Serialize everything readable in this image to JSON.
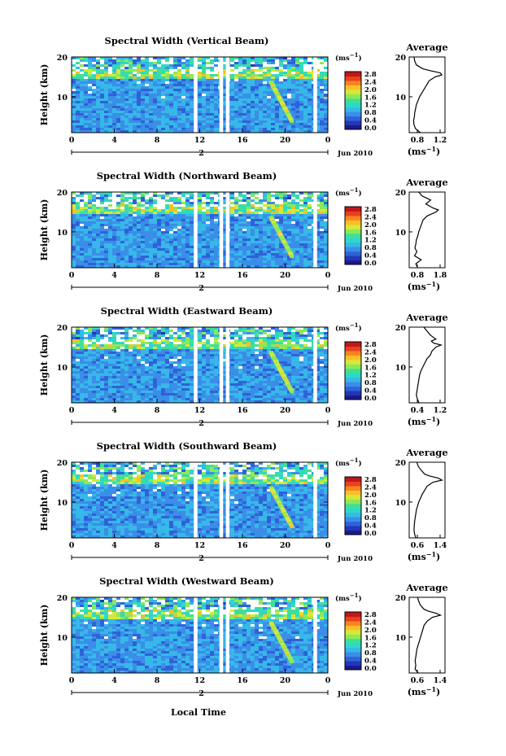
{
  "figure": {
    "xlabel": "Local Time",
    "date_label": "Jun 2010",
    "day_label": "2",
    "colorbar_unit": "(ms",
    "colorbar_unit_exp": "−1",
    "colorbar_unit_close": ")",
    "avg_unit": "(ms",
    "avg_unit_exp": "−1",
    "avg_unit_close": ")",
    "colorbar_ticks": [
      "0.0",
      "0.4",
      "0.8",
      "1.2",
      "1.6",
      "2.0",
      "2.4",
      "2.8"
    ],
    "colors": {
      "cmap": [
        "#1a1a8a",
        "#2436b8",
        "#2f62d8",
        "#3b8ee8",
        "#36b8e8",
        "#2ed8c8",
        "#3ee098",
        "#8ee858",
        "#d8e838",
        "#f8c028",
        "#f88420",
        "#e84020",
        "#c01818"
      ],
      "background": "#3a6ee0",
      "gap": "#ffffff"
    }
  },
  "chart_data": [
    {
      "type": "heatmap",
      "title": "Spectral Width (Vertical Beam)",
      "ylabel": "Height (km)",
      "x_ticks": [
        "0",
        "4",
        "8",
        "12",
        "16",
        "20",
        "0"
      ],
      "y_ticks": [
        "20",
        "10"
      ],
      "xlim": [
        0,
        24
      ],
      "ylim": [
        1,
        20
      ],
      "gaps_hours": [
        11.6,
        14.0,
        14.6,
        22.8
      ],
      "profile": {
        "title": "Average",
        "x_ticks": [
          "0.8",
          "1.2"
        ],
        "xlim": [
          0.5,
          1.4
        ],
        "y_ticks": [
          "20",
          "10"
        ],
        "heights": [
          1,
          2,
          3,
          4,
          5,
          6,
          7,
          8,
          9,
          10,
          11,
          12,
          13,
          14,
          15,
          15.5,
          16,
          16.5,
          17,
          18,
          19,
          20
        ],
        "values": [
          0.78,
          0.66,
          0.62,
          0.61,
          0.63,
          0.64,
          0.66,
          0.68,
          0.72,
          0.76,
          0.82,
          0.88,
          0.94,
          1.0,
          1.15,
          1.32,
          1.28,
          1.05,
          0.85,
          0.68,
          0.64,
          0.62
        ]
      }
    },
    {
      "type": "heatmap",
      "title": "Spectral Width (Northward Beam)",
      "ylabel": "Height (km)",
      "x_ticks": [
        "0",
        "4",
        "8",
        "12",
        "16",
        "20",
        "0"
      ],
      "y_ticks": [
        "20",
        "10"
      ],
      "xlim": [
        0,
        24
      ],
      "ylim": [
        1,
        20
      ],
      "gaps_hours": [
        11.6,
        14.0,
        14.6,
        22.8
      ],
      "profile": {
        "title": "Average",
        "x_ticks": [
          "0.8",
          "1.8"
        ],
        "xlim": [
          0.5,
          2.0
        ],
        "y_ticks": [
          "20",
          "10"
        ],
        "heights": [
          1,
          2,
          3,
          4,
          5,
          6,
          7,
          8,
          9,
          10,
          11,
          12,
          13,
          14,
          15,
          15.5,
          16,
          16.5,
          17,
          18,
          19,
          20
        ],
        "values": [
          0.85,
          0.78,
          1.0,
          0.72,
          0.82,
          0.74,
          0.78,
          0.8,
          0.86,
          0.9,
          0.96,
          1.02,
          1.08,
          1.25,
          1.62,
          1.72,
          1.5,
          1.35,
          1.2,
          1.4,
          1.05,
          0.9
        ]
      }
    },
    {
      "type": "heatmap",
      "title": "Spectral Width (Eastward Beam)",
      "ylabel": "Height (km)",
      "x_ticks": [
        "0",
        "4",
        "8",
        "12",
        "16",
        "20",
        "0"
      ],
      "y_ticks": [
        "20",
        "10"
      ],
      "xlim": [
        0,
        24
      ],
      "ylim": [
        1,
        20
      ],
      "gaps_hours": [
        11.6,
        14.0,
        14.6,
        22.8
      ],
      "profile": {
        "title": "Average",
        "x_ticks": [
          "0.4",
          "1.2"
        ],
        "xlim": [
          0.3,
          1.4
        ],
        "y_ticks": [
          "20",
          "10"
        ],
        "heights": [
          1,
          2,
          3,
          4,
          5,
          6,
          7,
          8,
          9,
          10,
          11,
          12,
          13,
          14,
          15,
          15.5,
          16,
          16.5,
          17,
          18,
          19,
          20
        ],
        "values": [
          0.6,
          0.55,
          0.52,
          0.54,
          0.56,
          0.58,
          0.6,
          0.62,
          0.66,
          0.72,
          0.78,
          0.84,
          0.95,
          1.0,
          1.12,
          1.28,
          1.05,
          0.98,
          1.12,
          0.95,
          0.85,
          0.75
        ]
      }
    },
    {
      "type": "heatmap",
      "title": "Spectral Width (Southward Beam)",
      "ylabel": "Height (km)",
      "x_ticks": [
        "0",
        "4",
        "8",
        "12",
        "16",
        "20",
        "0"
      ],
      "y_ticks": [
        "20",
        "10"
      ],
      "xlim": [
        0,
        24
      ],
      "ylim": [
        1,
        20
      ],
      "gaps_hours": [
        11.6,
        14.0,
        14.6,
        22.8
      ],
      "profile": {
        "title": "Average",
        "x_ticks": [
          "0.6",
          "1.4"
        ],
        "xlim": [
          0.4,
          1.6
        ],
        "y_ticks": [
          "20",
          "10"
        ],
        "heights": [
          1,
          2,
          3,
          4,
          5,
          6,
          7,
          8,
          9,
          10,
          11,
          12,
          13,
          14,
          15,
          15.5,
          16,
          16.5,
          17,
          18,
          19,
          20
        ],
        "values": [
          0.62,
          0.58,
          0.56,
          0.57,
          0.58,
          0.6,
          0.62,
          0.64,
          0.68,
          0.72,
          0.78,
          0.84,
          0.92,
          1.0,
          1.2,
          1.5,
          1.38,
          1.1,
          0.92,
          0.8,
          0.7,
          0.66
        ]
      }
    },
    {
      "type": "heatmap",
      "title": "Spectral Width (Westward Beam)",
      "ylabel": "Height (km)",
      "x_ticks": [
        "0",
        "4",
        "8",
        "12",
        "16",
        "20",
        "0"
      ],
      "y_ticks": [
        "20",
        "10"
      ],
      "xlim": [
        0,
        24
      ],
      "ylim": [
        1,
        20
      ],
      "gaps_hours": [
        11.6,
        14.0,
        14.6,
        22.8
      ],
      "profile": {
        "title": "Average",
        "x_ticks": [
          "0.6",
          "1.4"
        ],
        "xlim": [
          0.4,
          1.6
        ],
        "y_ticks": [
          "20",
          "10"
        ],
        "heights": [
          1,
          2,
          3,
          4,
          5,
          6,
          7,
          8,
          9,
          10,
          11,
          12,
          13,
          14,
          15,
          15.5,
          16,
          16.5,
          17,
          18,
          19,
          20
        ],
        "values": [
          0.7,
          0.6,
          0.62,
          0.6,
          0.62,
          0.64,
          0.66,
          0.7,
          0.74,
          0.78,
          0.82,
          0.86,
          0.9,
          1.0,
          1.18,
          1.45,
          1.3,
          1.05,
          0.9,
          0.78,
          0.72,
          0.68
        ]
      }
    }
  ]
}
